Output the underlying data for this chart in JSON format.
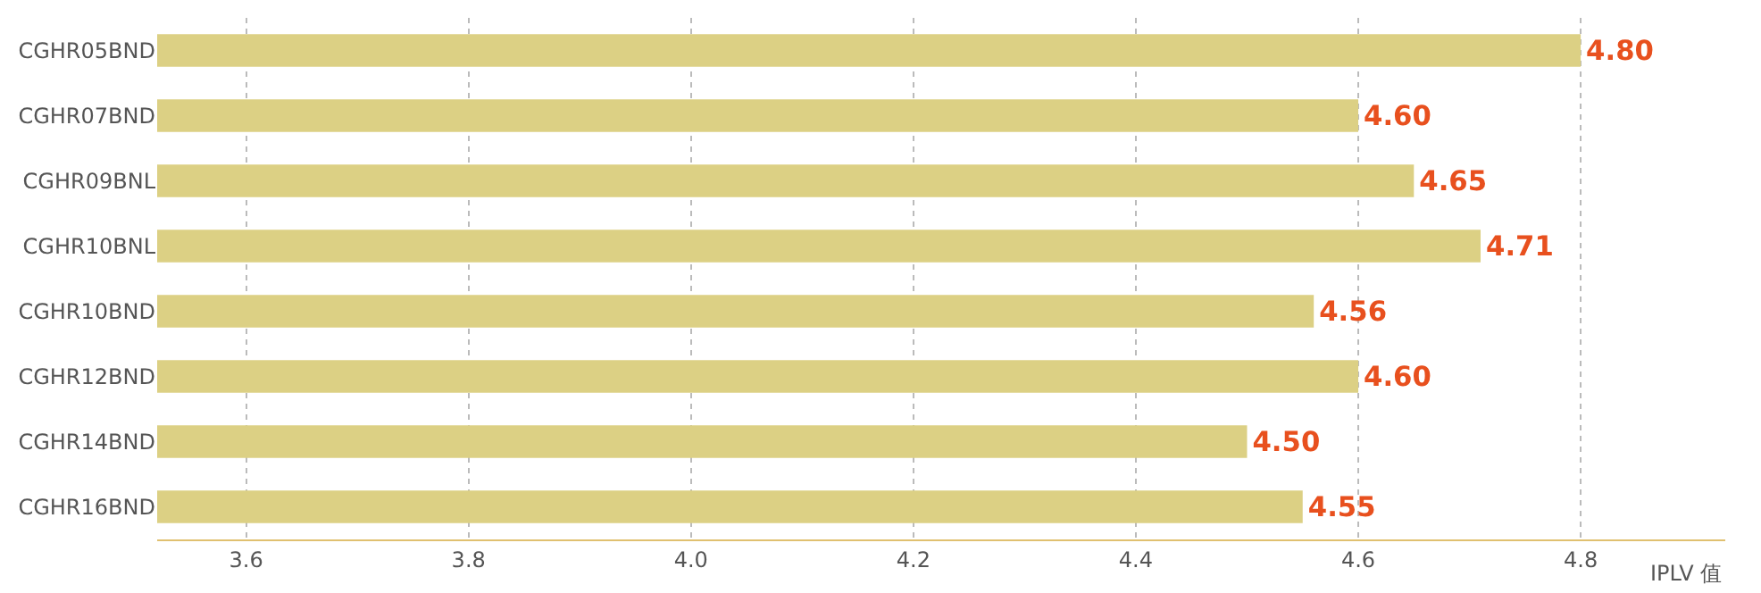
{
  "chart_data": {
    "type": "bar",
    "orientation": "horizontal",
    "categories": [
      "CGHR05BND",
      "CGHR07BND",
      "CGHR09BNL",
      "CGHR10BNL",
      "CGHR10BND",
      "CGHR12BND",
      "CGHR14BND",
      "CGHR16BND"
    ],
    "values": [
      4.8,
      4.6,
      4.65,
      4.71,
      4.56,
      4.6,
      4.5,
      4.55
    ],
    "value_labels": [
      "4.80",
      "4.60",
      "4.65",
      "4.71",
      "4.56",
      "4.60",
      "4.50",
      "4.55"
    ],
    "color": "#dcd084",
    "xlabel": "IPLV 值",
    "xlim": [
      3.52,
      4.93
    ],
    "xticks": [
      3.6,
      3.8,
      {
        "value": 4.0,
        "label": "4.0"
      },
      4.2,
      4.4,
      4.6,
      4.8
    ],
    "grid": "x"
  }
}
